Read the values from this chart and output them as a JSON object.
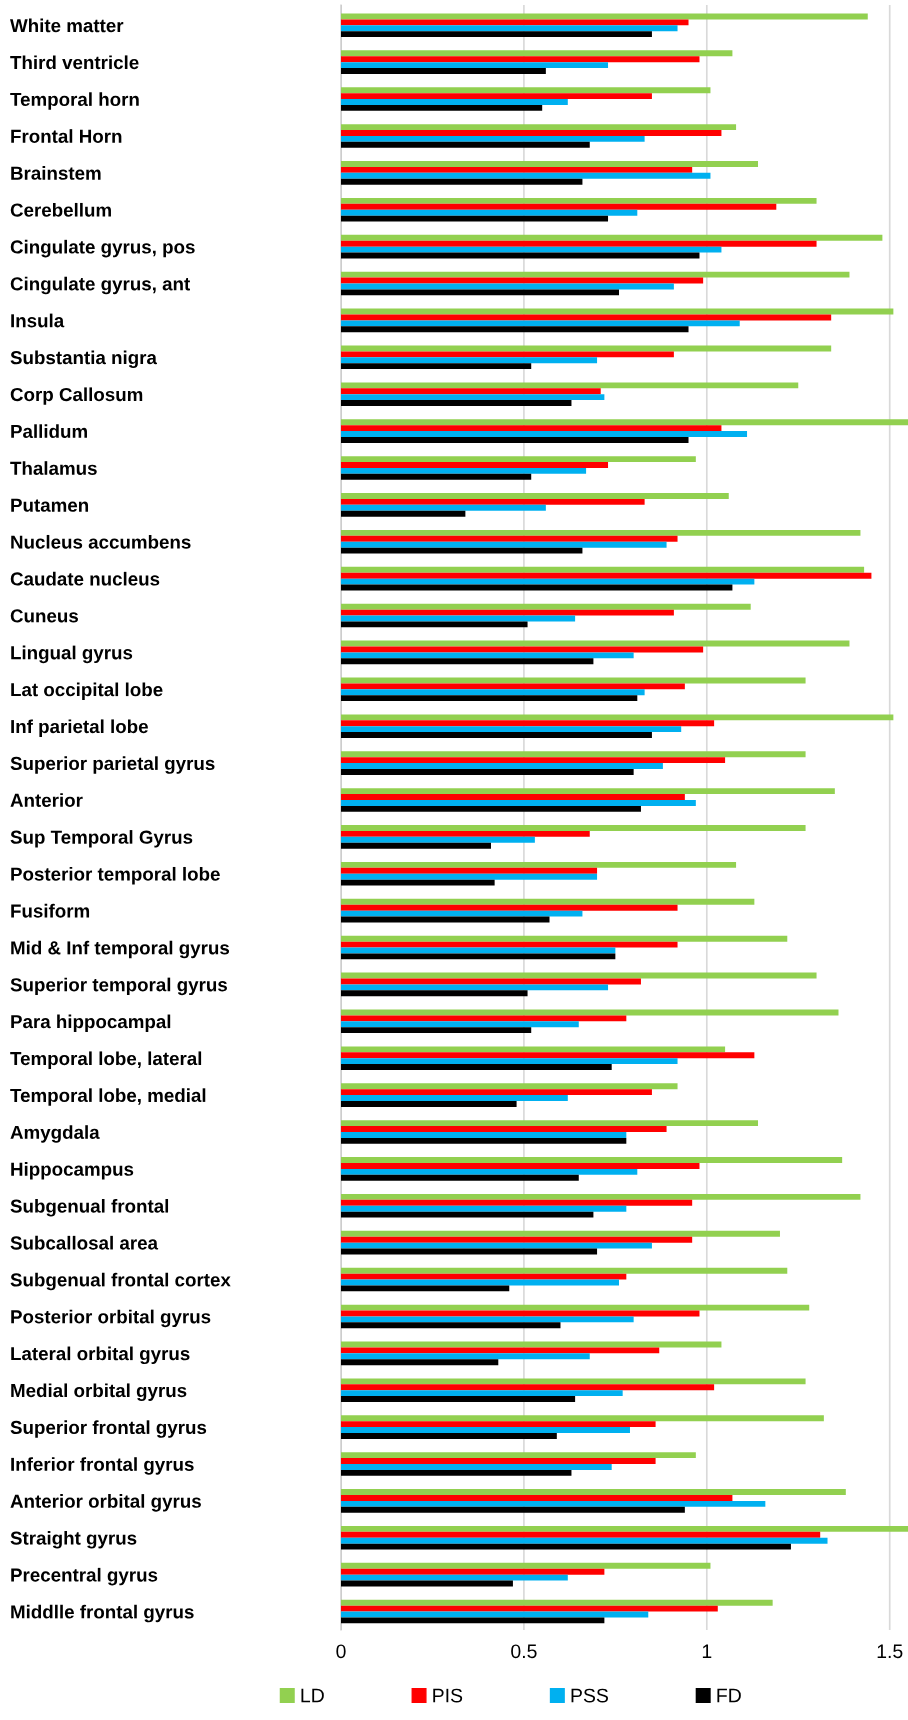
{
  "chart_data": {
    "type": "bar",
    "orientation": "horizontal",
    "categories": [
      "White matter",
      "Third ventricle",
      "Temporal horn",
      "Frontal Horn",
      "Brainstem",
      "Cerebellum",
      "Cingulate gyrus, pos",
      "Cingulate gyrus, ant",
      "Insula",
      "Substantia nigra",
      "Corp Callosum",
      "Pallidum",
      "Thalamus",
      "Putamen",
      "Nucleus accumbens",
      "Caudate nucleus",
      "Cuneus",
      "Lingual gyrus",
      "Lat occipital lobe",
      "Inf parietal lobe",
      "Superior parietal gyrus",
      "Anterior",
      "Sup Temporal Gyrus",
      "Posterior temporal lobe",
      "Fusiform",
      "Mid & Inf temporal gyrus",
      "Superior temporal gyrus",
      "Para hippocampal",
      "Temporal lobe, lateral",
      "Temporal lobe, medial",
      "Amygdala",
      "Hippocampus",
      "Subgenual frontal",
      "Subcallosal area",
      "Subgenual frontal cortex",
      "Posterior orbital gyrus",
      "Lateral orbital gyrus",
      "Medial orbital gyrus",
      "Superior frontal gyrus",
      "Inferior frontal gyrus",
      "Anterior orbital gyrus",
      "Straight gyrus",
      "Precentral gyrus",
      "Middlle frontal gyrus"
    ],
    "series": [
      {
        "name": "LD",
        "color": "#92d050",
        "values": [
          1.44,
          1.07,
          1.01,
          1.08,
          1.14,
          1.3,
          1.48,
          1.39,
          1.51,
          1.34,
          1.25,
          1.55,
          0.97,
          1.06,
          1.42,
          1.43,
          1.12,
          1.39,
          1.27,
          1.51,
          1.27,
          1.35,
          1.27,
          1.08,
          1.13,
          1.22,
          1.3,
          1.36,
          1.05,
          0.92,
          1.14,
          1.37,
          1.42,
          1.2,
          1.22,
          1.28,
          1.04,
          1.27,
          1.32,
          0.97,
          1.38,
          1.55,
          1.01,
          1.18
        ]
      },
      {
        "name": "PIS",
        "color": "#ff0000",
        "values": [
          0.95,
          0.98,
          0.85,
          1.04,
          0.96,
          1.19,
          1.3,
          0.99,
          1.34,
          0.91,
          0.71,
          1.04,
          0.73,
          0.83,
          0.92,
          1.45,
          0.91,
          0.99,
          0.94,
          1.02,
          1.05,
          0.94,
          0.68,
          0.7,
          0.92,
          0.92,
          0.82,
          0.78,
          1.13,
          0.85,
          0.89,
          0.98,
          0.96,
          0.96,
          0.78,
          0.98,
          0.87,
          1.02,
          0.86,
          0.86,
          1.07,
          1.31,
          0.72,
          1.03
        ]
      },
      {
        "name": "PSS",
        "color": "#00b0f0",
        "values": [
          0.92,
          0.73,
          0.62,
          0.83,
          1.01,
          0.81,
          1.04,
          0.91,
          1.09,
          0.7,
          0.72,
          1.11,
          0.67,
          0.56,
          0.89,
          1.13,
          0.64,
          0.8,
          0.83,
          0.93,
          0.88,
          0.97,
          0.53,
          0.7,
          0.66,
          0.75,
          0.73,
          0.65,
          0.92,
          0.62,
          0.78,
          0.81,
          0.78,
          0.85,
          0.76,
          0.8,
          0.68,
          0.77,
          0.79,
          0.74,
          1.16,
          1.33,
          0.62,
          0.84
        ]
      },
      {
        "name": "FD",
        "color": "#000000",
        "values": [
          0.85,
          0.56,
          0.55,
          0.68,
          0.66,
          0.73,
          0.98,
          0.76,
          0.95,
          0.52,
          0.63,
          0.95,
          0.52,
          0.34,
          0.66,
          1.07,
          0.51,
          0.69,
          0.81,
          0.85,
          0.8,
          0.82,
          0.41,
          0.42,
          0.57,
          0.75,
          0.51,
          0.52,
          0.74,
          0.48,
          0.78,
          0.65,
          0.69,
          0.7,
          0.46,
          0.6,
          0.43,
          0.64,
          0.59,
          0.63,
          0.94,
          1.23,
          0.47,
          0.72
        ]
      }
    ],
    "xlim": [
      0,
      1.55
    ],
    "xticks": [
      0,
      0.5,
      1,
      1.5
    ],
    "grid": "x",
    "legend": "bottom"
  }
}
